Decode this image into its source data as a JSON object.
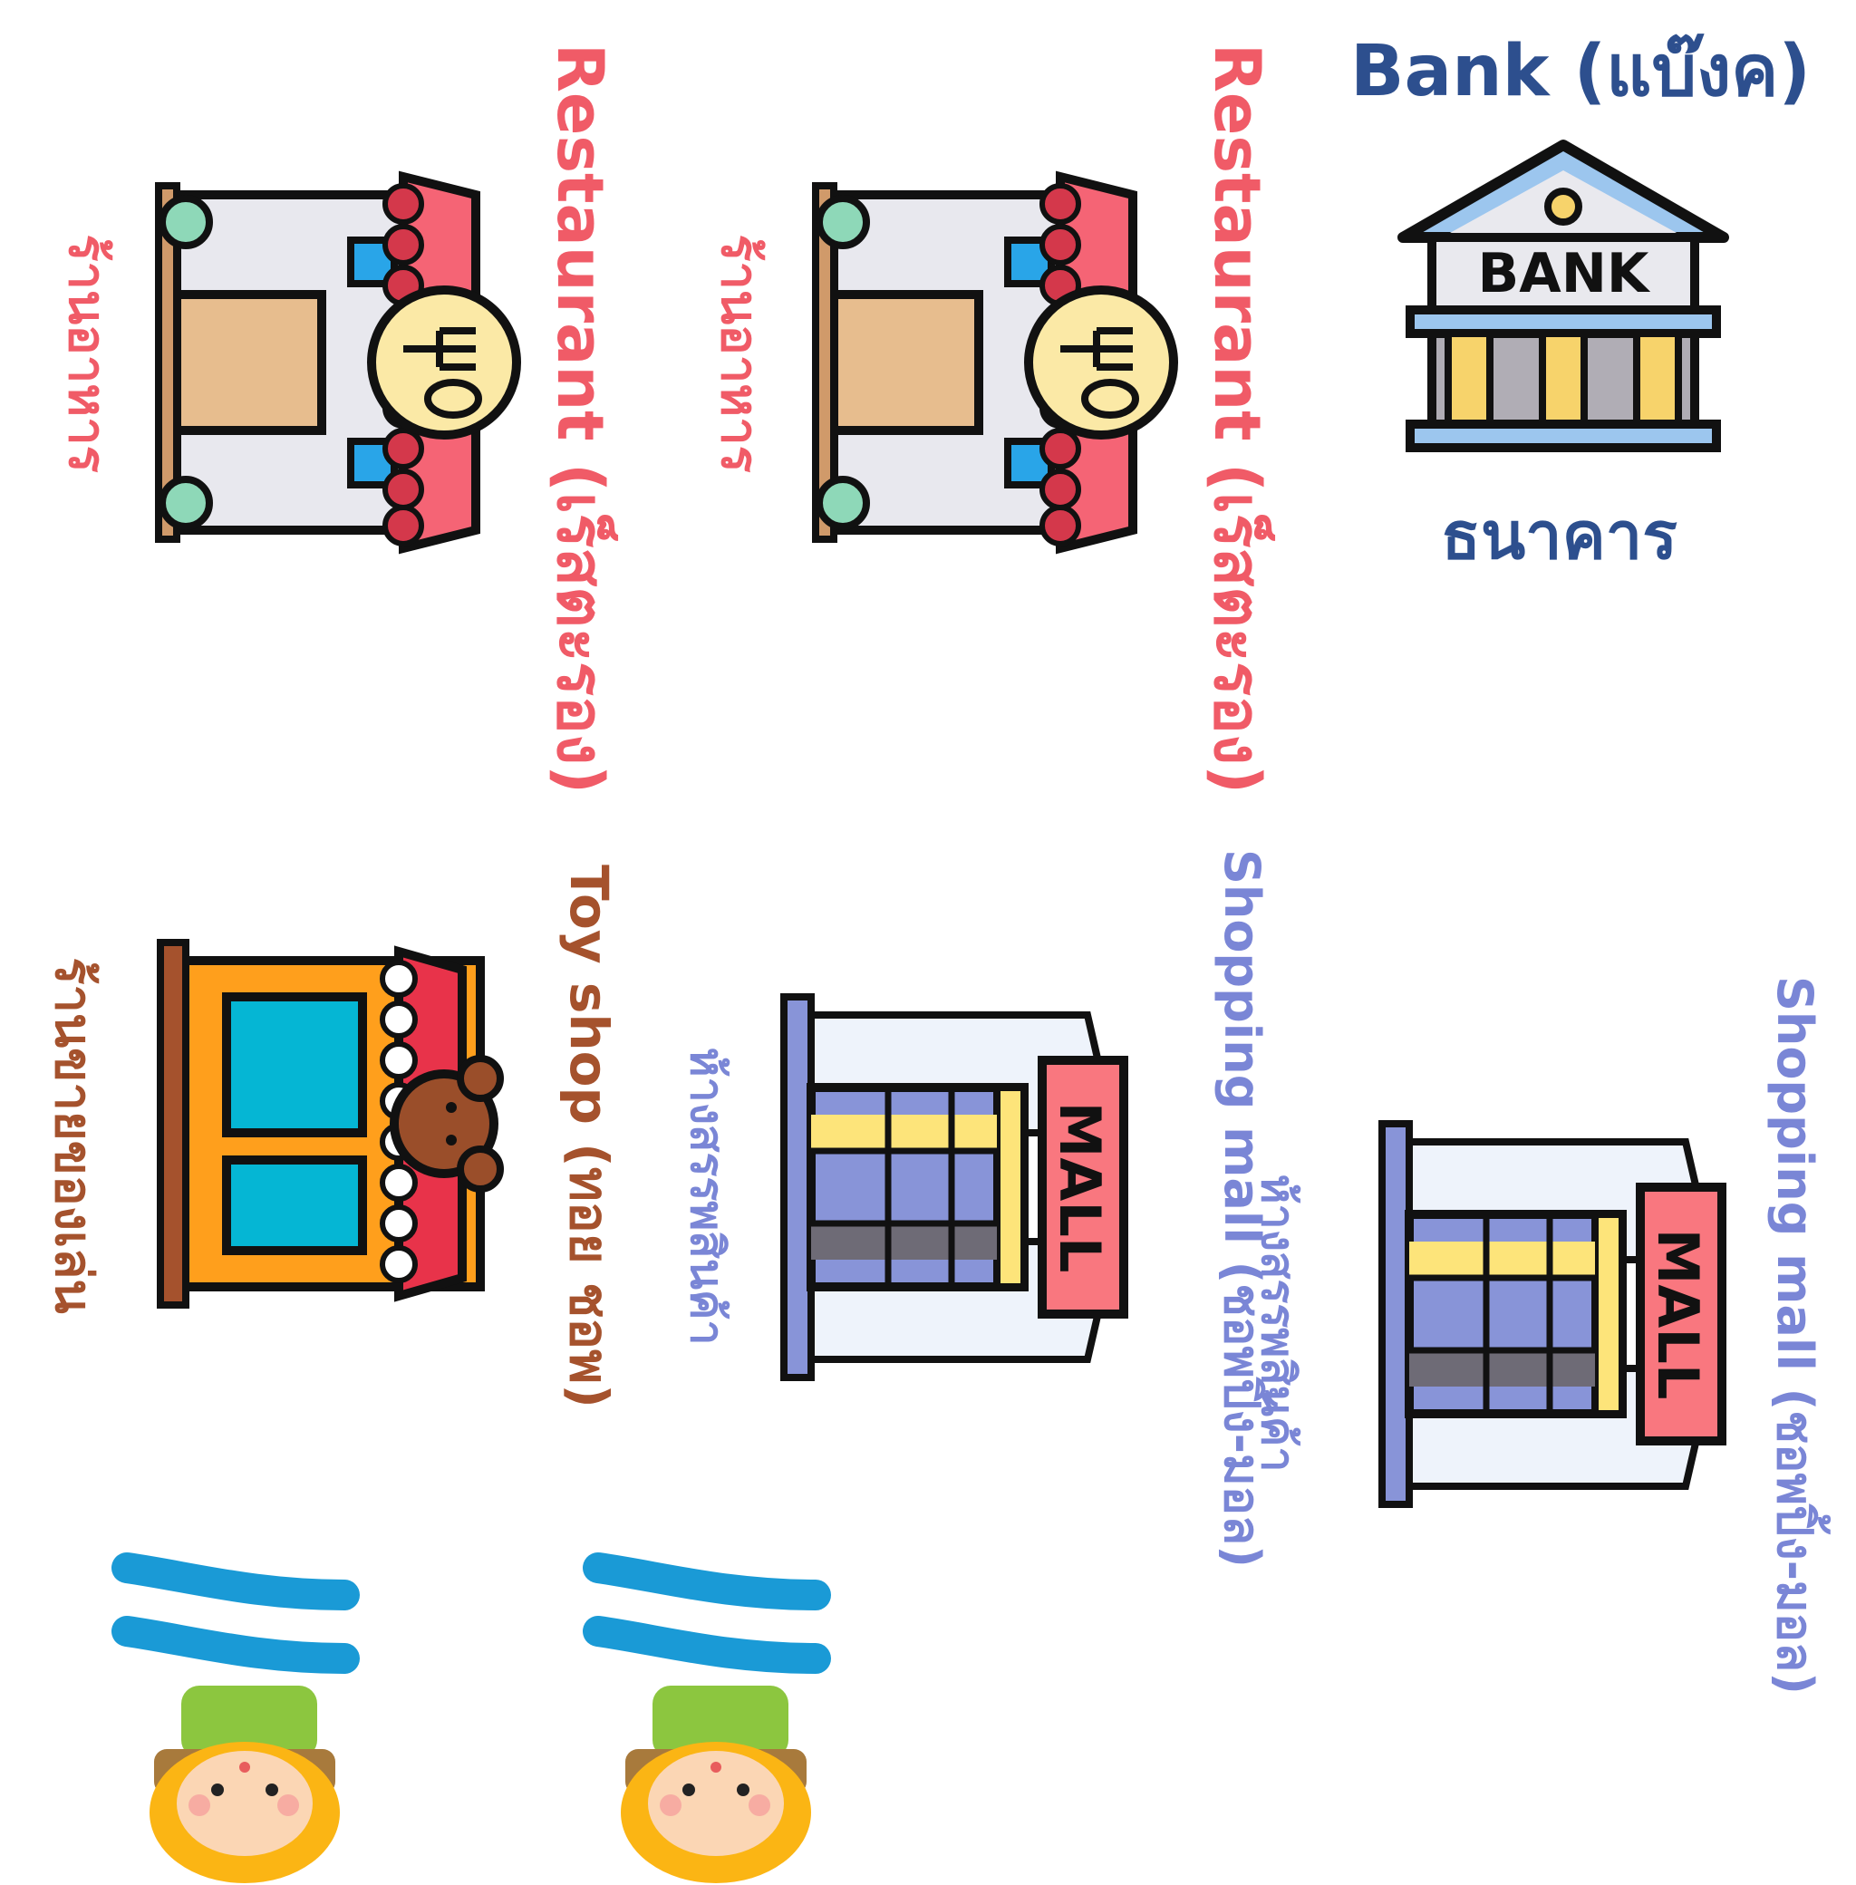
{
  "bank": {
    "title": "Bank (แบ๊งค)",
    "thai": "ธนาคาร",
    "sign": "BANK"
  },
  "restaurant": {
    "english": "Restaurant (เร็สตะรอง)",
    "thai": "ร้านอาหาร"
  },
  "mall": {
    "english": "Shopping mall (ชอพปิ้ง-มอล)",
    "thai": "ห้างสรรพสินค้า",
    "sign": "MALL"
  },
  "toyshop": {
    "english": "Toy shop (ทอย ชอพ)",
    "thai": "ร้านขายของเล่น"
  },
  "colors": {
    "restaurant": "#f05b67",
    "bank": "#2d4f8e",
    "mall": "#7a86d6",
    "toyshop": "#a5522d"
  }
}
